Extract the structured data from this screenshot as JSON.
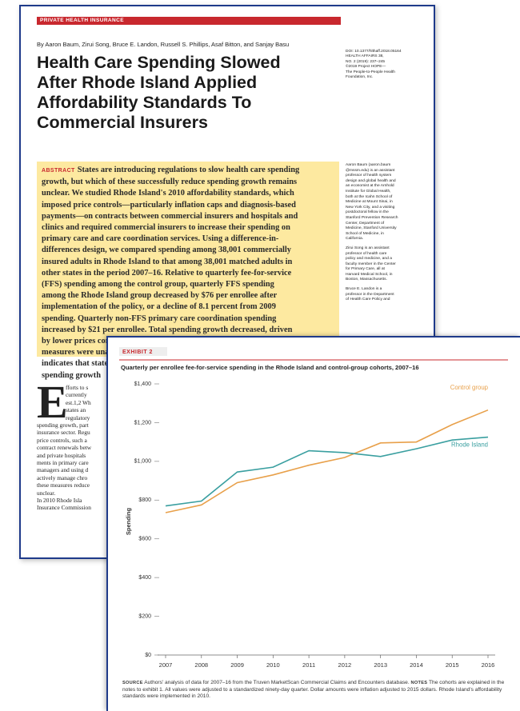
{
  "paper": {
    "section": "PRIVATE HEALTH INSURANCE",
    "authors": "By Aaron Baum, Zirui Song, Bruce E. Landon, Russell S. Phillips, Asaf Bitton, and Sanjay Basu",
    "title_lines": [
      "Health Care Spending Slowed",
      "After Rhode Island Applied",
      "Affordability Standards To",
      "Commercial Insurers"
    ],
    "doi_lines": [
      "DOI: 10.1377/hlthaff.2018.05164",
      "HEALTH AFFAIRS 38,",
      "NO. 2 (2019): 237–245",
      "©2019 Project HOPE—",
      "The People-to-People Health",
      "Foundation, Inc."
    ],
    "abstract_label": "ABSTRACT",
    "abstract_lines": [
      "States are introducing regulations to slow health care spending",
      "growth, but which of these successfully reduce spending growth remains",
      "unclear. We studied Rhode Island's 2010 affordability standards, which",
      "imposed price controls—particularly inflation caps and diagnosis-based",
      "payments—on contracts between commercial insurers and hospitals and",
      "clinics and required commercial insurers to increase their spending on",
      "primary care and care coordination services. Using a difference-in-",
      "differences design, we compared spending among 38,001 commercially",
      "insured adults in Rhode Island to that among 38,001 matched adults in",
      "other states in the period 2007–16. Relative to quarterly fee-for-service",
      "(FFS) spending among the control group, quarterly FFS spending",
      "among the Rhode Island group decreased by $76 per enrollee after",
      "implementation of the policy, or a decline of 8.1 percent from 2009",
      "spending. Quarterly non-FFS primary care coordination spending",
      "increased by $21 per enrollee. Total spending growth decreased, driven",
      "by lower prices concordant with the adoption of price controls. Quality",
      "measures were unaffected or improved. The Rhode Island experience",
      "indicates that states may be able to slow total commercial health care",
      "spending growth"
    ],
    "sidebar": [
      [
        "Aaron Baum (aaron.baum",
        "@mssm.edu) is an assistant",
        "professor of health system",
        "design and global health and",
        "an economist at the Arnhold",
        "Institute for Global Health,",
        "both at the Icahn School of",
        "Medicine at Mount Sinai, in",
        "New York City, and a visiting",
        "postdoctoral fellow in the",
        "Stanford Prevention Research",
        "Center, Department of",
        "Medicine, Stanford University",
        "School of Medicine, in",
        "California."
      ],
      [
        "Zirui Song is an assistant",
        "professor of health care",
        "policy and medicine, and a",
        "faculty member in the Center",
        "for Primary Care, all at",
        "Harvard Medical School, in",
        "Boston, Massachusetts."
      ],
      [
        "Bruce E. Landon is a",
        "professor in the Department",
        "of Health Care Policy and"
      ]
    ],
    "drop_cap": "E",
    "cap_lines": [
      "fforts to s",
      "currently",
      "est.1,2 Wh",
      "states an",
      "regulatory"
    ],
    "body_lines": [
      "spending growth, part",
      "insurance sector. Regu",
      "price controls, such a",
      "contract renewals betw",
      "and private hospitals",
      "ments in primary care",
      "managers and using d",
      "actively manage chro",
      "these measures reduce",
      "unclear.",
      "In 2010 Rhode Isla",
      "Insurance Commission"
    ]
  },
  "chart_data": {
    "type": "line",
    "label": "EXHIBIT 2",
    "title": "Quarterly per enrollee fee-for-service spending in the Rhode Island and control-group cohorts, 2007–16",
    "ylabel": "Spending",
    "x": [
      2007,
      2008,
      2009,
      2010,
      2011,
      2012,
      2013,
      2014,
      2015,
      2016
    ],
    "series": [
      {
        "name": "Control group",
        "color": "#e8a04a",
        "values": [
          735,
          775,
          890,
          930,
          980,
          1020,
          1095,
          1100,
          1190,
          1265
        ]
      },
      {
        "name": "Rhode Island",
        "color": "#3a9fa0",
        "values": [
          770,
          795,
          945,
          970,
          1055,
          1045,
          1025,
          1065,
          1110,
          1125
        ]
      }
    ],
    "xlim": [
      2007,
      2016
    ],
    "xticks": [
      2007,
      2008,
      2009,
      2010,
      2011,
      2012,
      2013,
      2014,
      2015,
      2016
    ],
    "ylim": [
      0,
      1400
    ],
    "yticks": [
      {
        "value": 0,
        "label": "$0"
      },
      {
        "value": 200,
        "label": "$200"
      },
      {
        "value": 400,
        "label": "$400"
      },
      {
        "value": 600,
        "label": "$600"
      },
      {
        "value": 800,
        "label": "$800"
      },
      {
        "value": 1000,
        "label": "$1,000"
      },
      {
        "value": 1200,
        "label": "$1,200"
      },
      {
        "value": 1400,
        "label": "$1,400"
      }
    ],
    "grid": false,
    "source_label": "SOURCE",
    "source": "Authors' analysis of data for 2007–16 from the Truven MarketScan Commercial Claims and Encounters database.",
    "notes_label": "NOTES",
    "notes": "The cohorts are explained in the notes to exhibit 1. All values were adjusted to a standardized ninety-day quarter. Dollar amounts were inflation adjusted to 2015 dollars. Rhode Island's affordability standards were implemented in 2010."
  }
}
